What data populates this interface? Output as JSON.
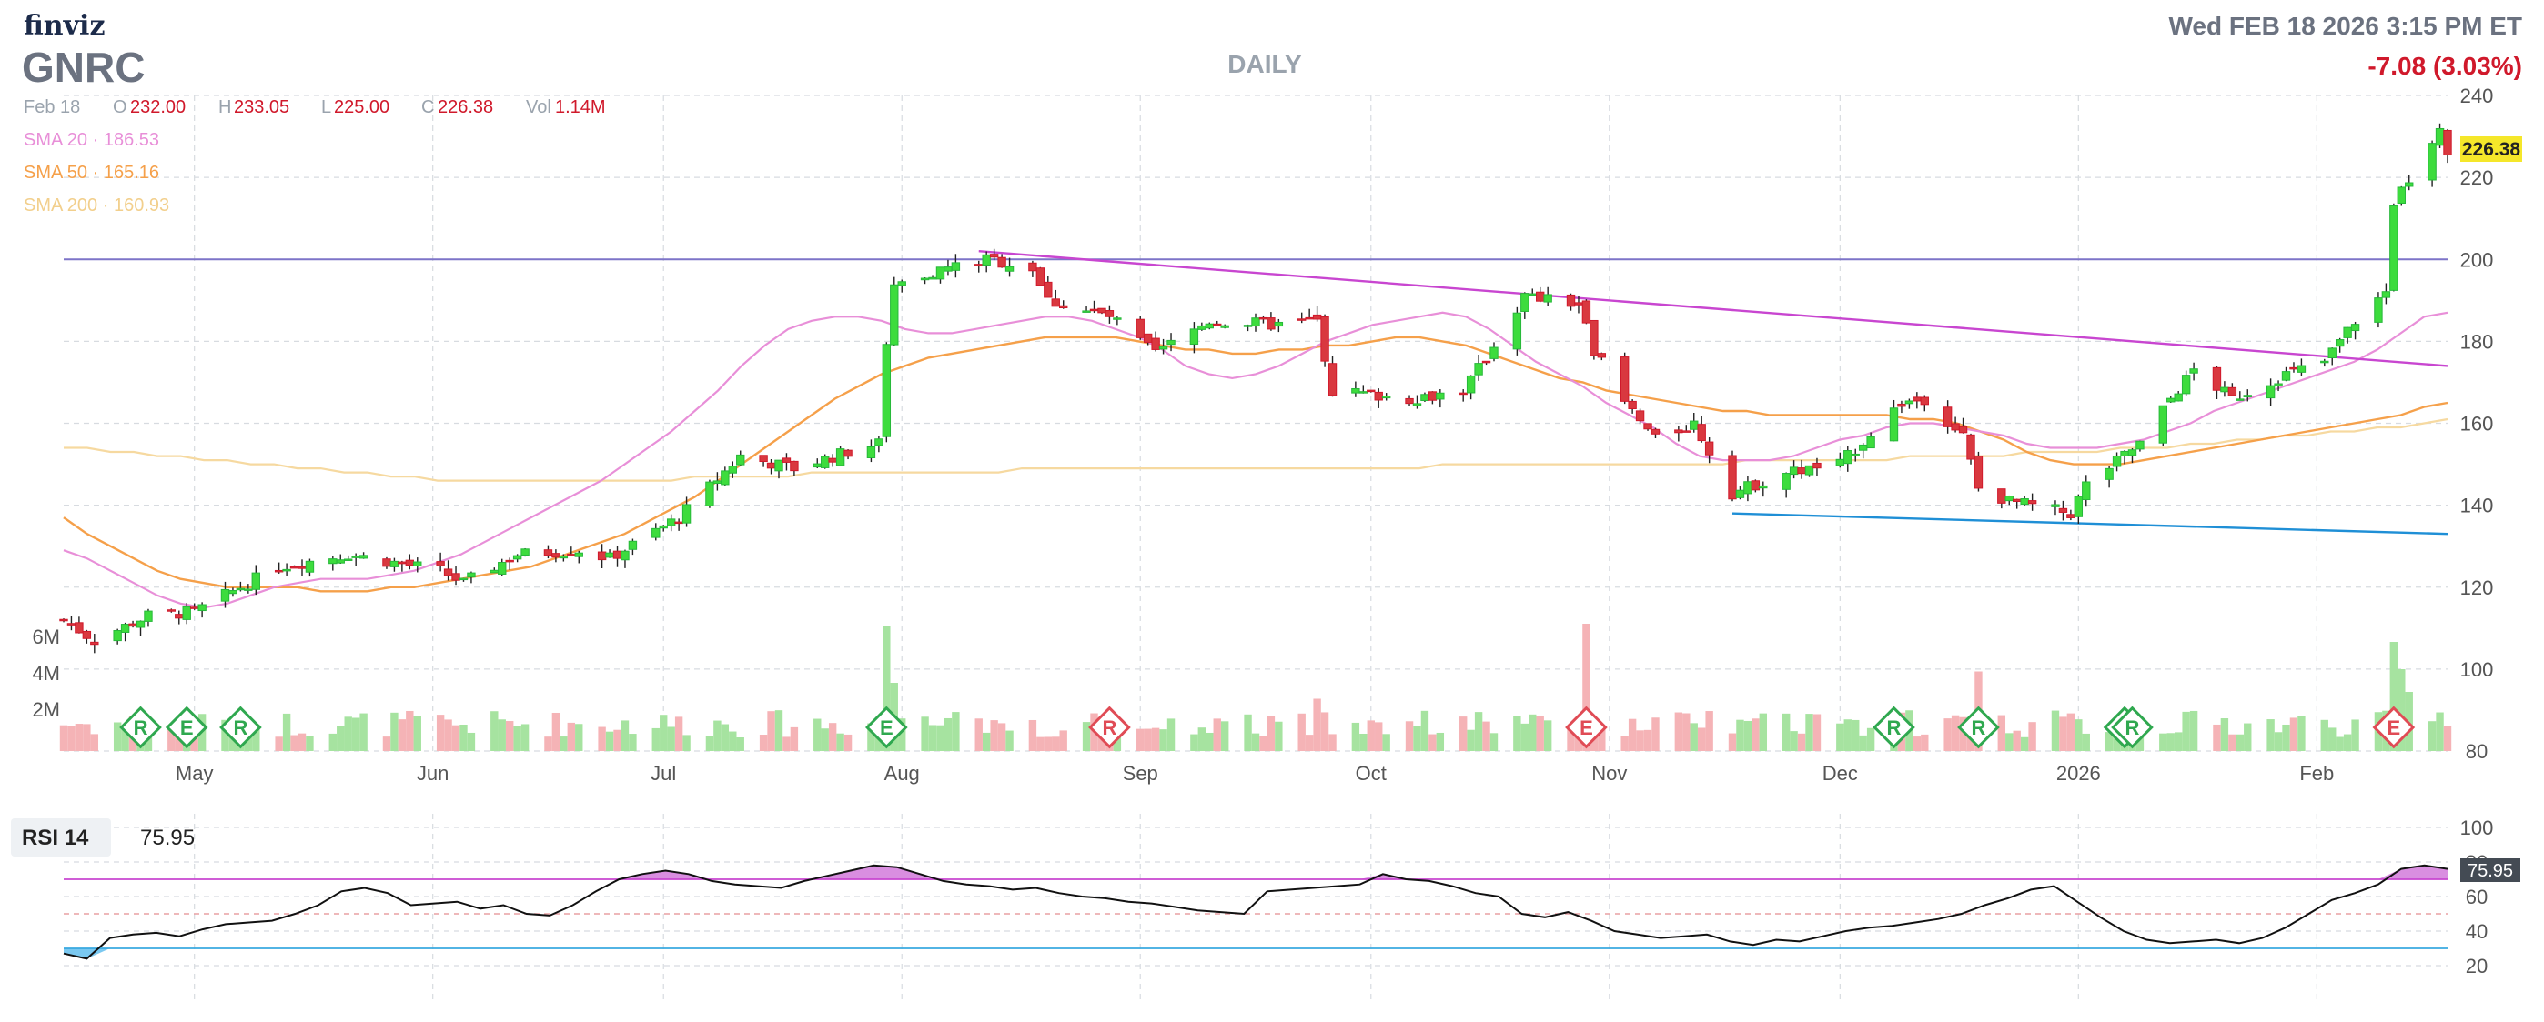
{
  "header": {
    "brand": "finviz",
    "ticker": "GNRC",
    "timeframe": "DAILY",
    "datetime": "Wed FEB 18 2026 3:15 PM ET",
    "change": "-7.08 (3.03%)"
  },
  "ohlc": {
    "date": "Feb 18",
    "o_label": "O",
    "o": "232.00",
    "h_label": "H",
    "h": "233.05",
    "l_label": "L",
    "l": "225.00",
    "c_label": "C",
    "c": "226.38",
    "vol_label": "Vol",
    "vol": "1.14M"
  },
  "legend": [
    {
      "label": "SMA 20",
      "value": "186.53",
      "color": "#e88fd8"
    },
    {
      "label": "SMA 50",
      "value": "165.16",
      "color": "#f5a04a"
    },
    {
      "label": "SMA 200",
      "value": "160.93",
      "color": "#f6d9a0"
    }
  ],
  "colors": {
    "up": "#27b83a",
    "up_fill": "#3ddc3d",
    "down": "#d0192b",
    "down_fill": "#d9383f",
    "vol_up": "#a6e3a0",
    "vol_down": "#f5b3b6",
    "sma20": "#e88fd8",
    "sma50": "#f5a04a",
    "sma200": "#f6d9a0",
    "resistance": "#c846d0",
    "support": "#1f8fd6",
    "level200": "#7d74c8",
    "rsi_line": "#111111",
    "rsi_ob": "#d98ee0",
    "rsi_os": "#7ac8f0",
    "last_price_bg": "#f5e72a",
    "change": "#d0192b"
  },
  "chart_data": [
    {
      "type": "candlestick",
      "title": "GNRC",
      "last_price": 226.38,
      "last_price_label": "226.38",
      "ylim": [
        80,
        240
      ],
      "y_ticks": [
        80,
        100,
        120,
        140,
        160,
        180,
        200,
        220,
        240
      ],
      "x_ticks": [
        "May",
        "Jun",
        "Jul",
        "Aug",
        "Sep",
        "Oct",
        "Nov",
        "Dec",
        "2026",
        "Feb"
      ],
      "volume_ticks": [
        "2M",
        "4M",
        "6M"
      ],
      "volume_max_m": 6,
      "horizontal_line": 200,
      "trendlines": [
        {
          "name": "resistance",
          "from": {
            "date": "2025-08-11",
            "value": 202
          },
          "to": {
            "date": "2026-02-18",
            "value": 174
          }
        },
        {
          "name": "support",
          "from": {
            "date": "2025-11-17",
            "value": 138
          },
          "to": {
            "date": "2026-02-18",
            "value": 133
          }
        }
      ],
      "events": [
        {
          "date": "2025-04-24",
          "type": "R",
          "color": "green"
        },
        {
          "date": "2025-04-30",
          "type": "E",
          "color": "green"
        },
        {
          "date": "2025-05-07",
          "type": "R",
          "color": "green"
        },
        {
          "date": "2025-07-30",
          "type": "E",
          "color": "green"
        },
        {
          "date": "2025-08-28",
          "type": "R",
          "color": "red"
        },
        {
          "date": "2025-10-29",
          "type": "E",
          "color": "red"
        },
        {
          "date": "2025-12-08",
          "type": "R",
          "color": "green"
        },
        {
          "date": "2025-12-19",
          "type": "R",
          "color": "green"
        },
        {
          "date": "2026-01-07",
          "type": "R",
          "color": "green"
        },
        {
          "date": "2026-01-08",
          "type": "R",
          "color": "green"
        },
        {
          "date": "2026-02-11",
          "type": "E",
          "color": "red"
        }
      ],
      "series": [
        {
          "name": "SMA 20",
          "values": [
            129,
            127,
            124,
            121,
            118,
            116,
            115,
            116,
            118,
            120,
            121,
            122,
            122,
            122,
            123,
            124,
            126,
            128,
            131,
            134,
            137,
            140,
            143,
            146,
            150,
            154,
            158,
            163,
            168,
            174,
            179,
            183,
            185,
            186,
            186,
            185,
            183,
            182,
            182,
            183,
            184,
            185,
            186,
            186,
            185,
            183,
            181,
            178,
            174,
            172,
            171,
            172,
            174,
            177,
            180,
            182,
            184,
            185,
            186,
            187,
            186,
            183,
            179,
            175,
            172,
            169,
            165,
            162,
            159,
            155,
            152,
            151,
            151,
            151,
            152,
            154,
            156,
            157,
            159,
            160,
            160,
            159,
            158,
            157,
            155,
            154,
            154,
            154,
            155,
            156,
            158,
            160,
            163,
            165,
            167,
            169,
            171,
            173,
            175,
            178,
            182,
            186,
            187
          ]
        },
        {
          "name": "SMA 50",
          "values": [
            137,
            133,
            130,
            127,
            124,
            122,
            121,
            120,
            120,
            120,
            120,
            119,
            119,
            119,
            120,
            120,
            121,
            122,
            123,
            124,
            125,
            127,
            129,
            131,
            133,
            136,
            139,
            142,
            146,
            150,
            154,
            158,
            162,
            166,
            169,
            172,
            174,
            176,
            177,
            178,
            179,
            180,
            181,
            181,
            181,
            181,
            180,
            179,
            178,
            178,
            177,
            177,
            178,
            178,
            179,
            179,
            180,
            181,
            181,
            180,
            179,
            177,
            175,
            173,
            171,
            170,
            168,
            167,
            166,
            165,
            164,
            163,
            163,
            162,
            162,
            162,
            162,
            162,
            162,
            161,
            161,
            160,
            158,
            156,
            153,
            151,
            150,
            150,
            150,
            151,
            152,
            153,
            154,
            155,
            156,
            157,
            158,
            159,
            160,
            161,
            162,
            164,
            165
          ]
        },
        {
          "name": "SMA 200",
          "values": [
            154,
            154,
            153,
            153,
            152,
            152,
            151,
            151,
            150,
            150,
            149,
            149,
            148,
            148,
            147,
            147,
            146,
            146,
            146,
            146,
            146,
            146,
            146,
            146,
            146,
            146,
            146,
            147,
            147,
            147,
            147,
            147,
            148,
            148,
            148,
            148,
            148,
            148,
            148,
            148,
            148,
            149,
            149,
            149,
            149,
            149,
            149,
            149,
            149,
            149,
            149,
            149,
            149,
            149,
            149,
            149,
            149,
            149,
            149,
            150,
            150,
            150,
            150,
            150,
            150,
            150,
            150,
            150,
            150,
            150,
            150,
            150,
            151,
            151,
            151,
            151,
            151,
            151,
            151,
            152,
            152,
            152,
            152,
            152,
            153,
            153,
            153,
            153,
            154,
            154,
            154,
            155,
            155,
            156,
            156,
            157,
            157,
            158,
            158,
            159,
            159,
            160,
            161
          ]
        }
      ]
    },
    {
      "type": "line",
      "title": "RSI 14",
      "value_label": "75.95",
      "last_value": 75.95,
      "ylim": [
        0,
        100
      ],
      "y_ticks": [
        20,
        40,
        60,
        80,
        100
      ],
      "overbought": 70,
      "oversold": 30,
      "series": [
        {
          "name": "RSI 14",
          "values": [
            27,
            24,
            36,
            38,
            39,
            37,
            41,
            44,
            45,
            46,
            50,
            55,
            63,
            65,
            62,
            55,
            56,
            57,
            53,
            55,
            50,
            49,
            55,
            63,
            70,
            73,
            75,
            73,
            69,
            67,
            66,
            65,
            69,
            72,
            75,
            78,
            77,
            73,
            69,
            67,
            66,
            64,
            65,
            62,
            60,
            59,
            57,
            56,
            54,
            52,
            51,
            50,
            63,
            64,
            65,
            66,
            67,
            73,
            70,
            69,
            66,
            62,
            60,
            50,
            48,
            51,
            46,
            40,
            38,
            36,
            37,
            38,
            34,
            32,
            35,
            34,
            37,
            40,
            42,
            43,
            45,
            47,
            50,
            55,
            59,
            64,
            66,
            57,
            48,
            40,
            35,
            33,
            34,
            35,
            33,
            36,
            42,
            50,
            58,
            62,
            67,
            76,
            78,
            76
          ]
        }
      ]
    }
  ]
}
